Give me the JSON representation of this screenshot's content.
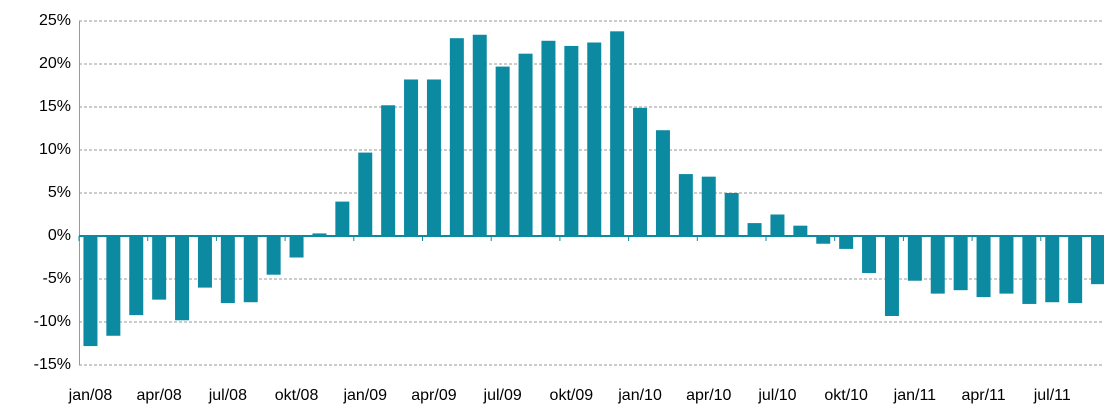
{
  "chart_data": {
    "type": "bar",
    "color": "#0b8aa1",
    "grid": true,
    "categories": [
      "jan/08",
      null,
      null,
      "apr/08",
      null,
      null,
      "jul/08",
      null,
      null,
      "okt/08",
      null,
      null,
      "jan/09",
      null,
      null,
      "apr/09",
      null,
      null,
      "jul/09",
      null,
      null,
      "okt/09",
      null,
      null,
      "jan/10",
      null,
      null,
      "apr/10",
      null,
      null,
      "jul/10",
      null,
      null,
      "okt/10",
      null,
      null,
      "jan/11",
      null,
      null,
      "apr/11",
      null,
      null,
      "jul/11",
      null,
      null
    ],
    "values": [
      -12.8,
      -11.6,
      -9.2,
      -7.4,
      -9.8,
      -6.0,
      -7.8,
      -7.7,
      -4.5,
      -2.5,
      0.3,
      4.0,
      9.7,
      15.2,
      18.2,
      18.2,
      23.0,
      23.4,
      19.7,
      21.2,
      22.7,
      22.1,
      22.5,
      23.8,
      14.9,
      12.3,
      7.2,
      6.9,
      5.0,
      1.5,
      2.5,
      1.2,
      -0.9,
      -1.5,
      -4.3,
      -9.3,
      -5.2,
      -6.7,
      -6.3,
      -7.1,
      -6.7,
      -7.9,
      -7.7,
      -7.8,
      -5.6
    ],
    "ylim": [
      -15,
      25
    ],
    "yticks": [
      {
        "value": -15,
        "label": "-15%"
      },
      {
        "value": -10,
        "label": "-10%"
      },
      {
        "value": -5,
        "label": "-5%"
      },
      {
        "value": 0,
        "label": "0%"
      },
      {
        "value": 5,
        "label": "5%"
      },
      {
        "value": 10,
        "label": "10%"
      },
      {
        "value": 15,
        "label": "15%"
      },
      {
        "value": 20,
        "label": "20%"
      },
      {
        "value": 25,
        "label": "25%"
      }
    ]
  }
}
